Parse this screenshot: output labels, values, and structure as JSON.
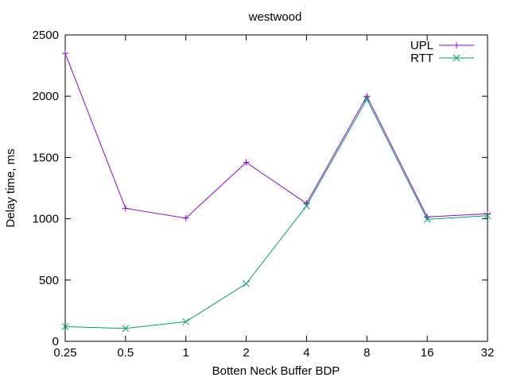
{
  "chart_data": {
    "type": "line",
    "title": "westwood",
    "xlabel": "Botten Neck Buffer BDP",
    "ylabel": "Delay time, ms",
    "categories": [
      "0.25",
      "0.5",
      "1",
      "2",
      "4",
      "8",
      "16",
      "32"
    ],
    "ylim": [
      0,
      2500
    ],
    "yticks": [
      "0",
      "500",
      "1000",
      "1500",
      "2000",
      "2500"
    ],
    "grid": false,
    "legend": "top-right",
    "series": [
      {
        "name": "UPL",
        "color": "#9400d3",
        "marker": "plus",
        "values": [
          2350,
          1085,
          1005,
          1460,
          1125,
          2000,
          1015,
          1040
        ]
      },
      {
        "name": "RTT",
        "color": "#009e73",
        "marker": "cross",
        "values": [
          120,
          105,
          160,
          470,
          1105,
          1975,
          995,
          1025
        ]
      }
    ]
  }
}
